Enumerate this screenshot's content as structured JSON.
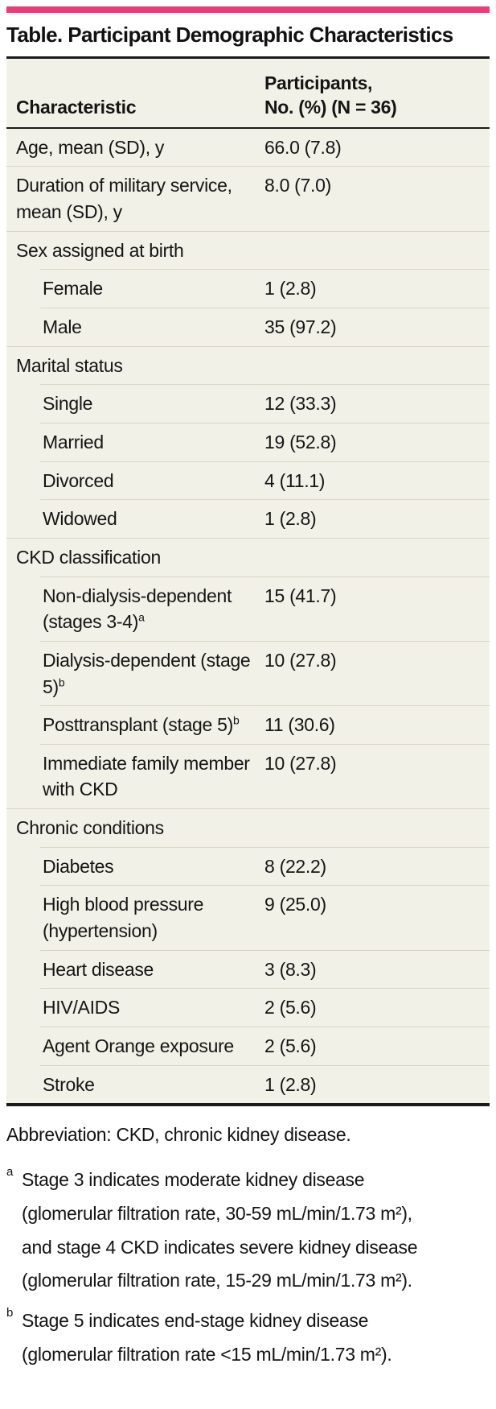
{
  "title": "Table. Participant Demographic Characteristics",
  "colors": {
    "accent_pink": "#ED3B7A",
    "table_background": "#F2F1E8",
    "row_divider": "#D8D5C4",
    "rule_black": "#1A1A1A",
    "text": "#151515"
  },
  "table": {
    "header": {
      "characteristic": "Characteristic",
      "participants_line1": "Participants,",
      "participants_line2": "No. (%) (N = 36)"
    },
    "rows": [
      {
        "label": "Age, mean (SD), y",
        "value": "66.0 (7.8)",
        "indent": 0
      },
      {
        "label": "Duration of military service, mean (SD), y",
        "value": "8.0 (7.0)",
        "indent": 0
      },
      {
        "label": "Sex assigned at birth",
        "value": "",
        "indent": 0
      },
      {
        "label": "Female",
        "value": "1 (2.8)",
        "indent": 1
      },
      {
        "label": "Male",
        "value": "35 (97.2)",
        "indent": 1
      },
      {
        "label": "Marital status",
        "value": "",
        "indent": 0
      },
      {
        "label": "Single",
        "value": "12 (33.3)",
        "indent": 1
      },
      {
        "label": "Married",
        "value": "19 (52.8)",
        "indent": 1
      },
      {
        "label": "Divorced",
        "value": "4 (11.1)",
        "indent": 1
      },
      {
        "label": "Widowed",
        "value": "1 (2.8)",
        "indent": 1
      },
      {
        "label": "CKD classification",
        "value": "",
        "indent": 0
      },
      {
        "label": "Non-dialysis-dependent (stages 3-4)",
        "sup": "a",
        "value": "15 (41.7)",
        "indent": 1
      },
      {
        "label": "Dialysis-dependent (stage 5)",
        "sup": "b",
        "value": "10 (27.8)",
        "indent": 1
      },
      {
        "label": "Posttransplant (stage 5)",
        "sup": "b",
        "value": "11 (30.6)",
        "indent": 1
      },
      {
        "label": "Immediate family member with CKD",
        "value": "10 (27.8)",
        "indent": 1
      },
      {
        "label": "Chronic conditions",
        "value": "",
        "indent": 0
      },
      {
        "label": "Diabetes",
        "value": "8 (22.2)",
        "indent": 1
      },
      {
        "label": "High blood pressure (hypertension)",
        "value": "9 (25.0)",
        "indent": 1
      },
      {
        "label": "Heart disease",
        "value": "3 (8.3)",
        "indent": 1
      },
      {
        "label": "HIV/AIDS",
        "value": "2 (5.6)",
        "indent": 1
      },
      {
        "label": "Agent Orange exposure",
        "value": "2 (5.6)",
        "indent": 1
      },
      {
        "label": "Stroke",
        "value": "1 (2.8)",
        "indent": 1
      }
    ]
  },
  "footnotes": {
    "abbreviation": "Abbreviation: CKD, chronic kidney disease.",
    "items": [
      {
        "marker": "a",
        "text": "Stage 3 indicates moderate kidney disease (glomerular filtration rate, 30-59 mL/min/1.73 m²), and stage 4 CKD indicates severe kidney disease (glomerular filtration rate, 15-29 mL/min/1.73 m²)."
      },
      {
        "marker": "b",
        "text": "Stage 5 indicates end-stage kidney disease (glomerular filtration rate <15 mL/min/1.73 m²)."
      }
    ]
  }
}
